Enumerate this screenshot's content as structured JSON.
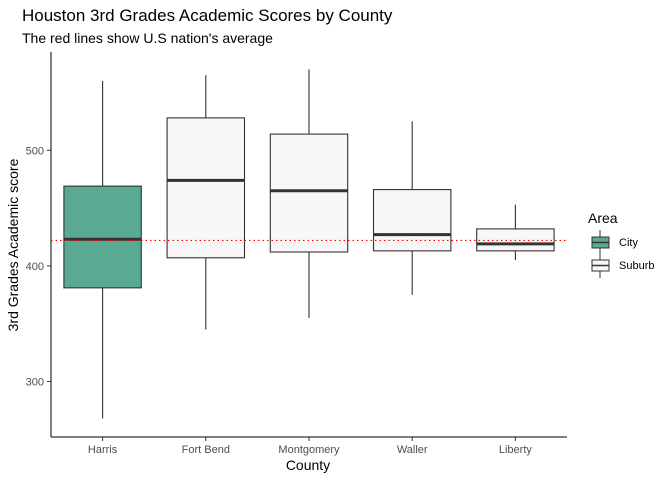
{
  "chart_data": {
    "type": "boxplot",
    "title": "Houston 3rd Grades Academic Scores by County",
    "subtitle": "The red lines show U.S nation's average",
    "xlabel": "County",
    "ylabel": "3rd Grades Academic score",
    "ylim": [
      252,
      585
    ],
    "yticks": [
      300,
      400,
      500
    ],
    "grid": false,
    "reference_line": {
      "value": 422,
      "color": "#ff0000",
      "style": "dotted"
    },
    "legend": {
      "title": "Area",
      "position": "right",
      "entries": [
        {
          "label": "City",
          "color": "#5aaa93"
        },
        {
          "label": "Suburb",
          "color": "#f7f7f7"
        }
      ]
    },
    "categories": [
      "Harris",
      "Fort Bend",
      "Montgomery",
      "Waller",
      "Liberty"
    ],
    "boxes": [
      {
        "category": "Harris",
        "area": "City",
        "min": 268,
        "q1": 381,
        "median": 423,
        "q3": 469,
        "max": 560
      },
      {
        "category": "Fort Bend",
        "area": "Suburb",
        "min": 345,
        "q1": 407,
        "median": 474,
        "q3": 528,
        "max": 565
      },
      {
        "category": "Montgomery",
        "area": "Suburb",
        "min": 355,
        "q1": 412,
        "median": 465,
        "q3": 514,
        "max": 570
      },
      {
        "category": "Waller",
        "area": "Suburb",
        "min": 375,
        "q1": 413,
        "median": 427,
        "q3": 466,
        "max": 525
      },
      {
        "category": "Liberty",
        "area": "Suburb",
        "min": 405,
        "q1": 413,
        "median": 419,
        "q3": 432,
        "max": 453
      }
    ]
  }
}
